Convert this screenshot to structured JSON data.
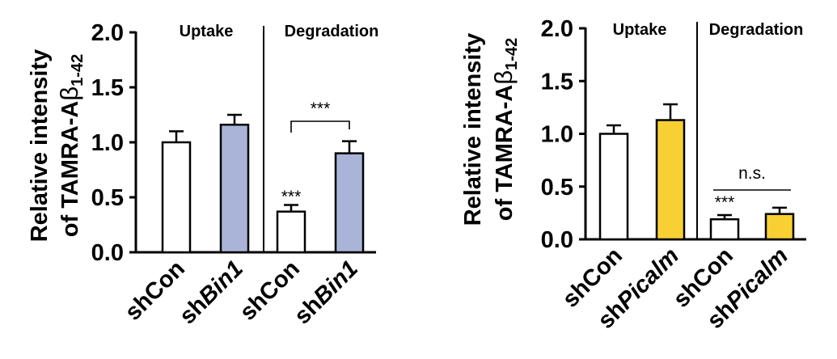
{
  "chart_data": [
    {
      "type": "bar",
      "ylabel_line1": "Relative intensity",
      "ylabel_line2_prefix": "of TAMRA-A",
      "ylabel_line2_greek": "β",
      "ylabel_line2_sub": "1-42",
      "ylim": [
        0,
        2.0
      ],
      "yticks": [
        "0.0",
        "0.5",
        "1.0",
        "1.5",
        "2.0"
      ],
      "regions": [
        "Uptake",
        "Degradation"
      ],
      "categories": [
        {
          "prefix": "sh",
          "gene": "Con"
        },
        {
          "prefix": "sh",
          "gene": "Bin1"
        },
        {
          "prefix": "sh",
          "gene": "Con"
        },
        {
          "prefix": "sh",
          "gene": "Bin1"
        }
      ],
      "values": [
        1.0,
        1.16,
        0.37,
        0.9
      ],
      "errors": [
        0.1,
        0.09,
        0.06,
        0.11
      ],
      "fills": [
        "#ffffff",
        "#a9b4d8",
        "#ffffff",
        "#a9b4d8"
      ],
      "annotations": [
        {
          "bar": 2,
          "text": "***"
        }
      ],
      "brackets": [
        {
          "from": 2,
          "to": 3,
          "text": "***"
        }
      ]
    },
    {
      "type": "bar",
      "ylabel_line1": "Relative intensity",
      "ylabel_line2_prefix": "of TAMRA-A",
      "ylabel_line2_greek": "β",
      "ylabel_line2_sub": "1-42",
      "ylim": [
        0,
        2.0
      ],
      "yticks": [
        "0.0",
        "0.5",
        "1.0",
        "1.5",
        "2.0"
      ],
      "regions": [
        "Uptake",
        "Degradation"
      ],
      "categories": [
        {
          "prefix": "sh",
          "gene": "Con"
        },
        {
          "prefix": "sh",
          "gene": "Picalm"
        },
        {
          "prefix": "sh",
          "gene": "Con"
        },
        {
          "prefix": "sh",
          "gene": "Picalm"
        }
      ],
      "values": [
        1.0,
        1.13,
        0.19,
        0.24
      ],
      "errors": [
        0.08,
        0.15,
        0.04,
        0.06
      ],
      "fills": [
        "#ffffff",
        "#f9d033",
        "#ffffff",
        "#f9d033"
      ],
      "annotations": [
        {
          "bar": 2,
          "text": "***"
        }
      ],
      "brackets": [
        {
          "from": 2,
          "to": 3,
          "text": "n.s."
        }
      ]
    }
  ]
}
